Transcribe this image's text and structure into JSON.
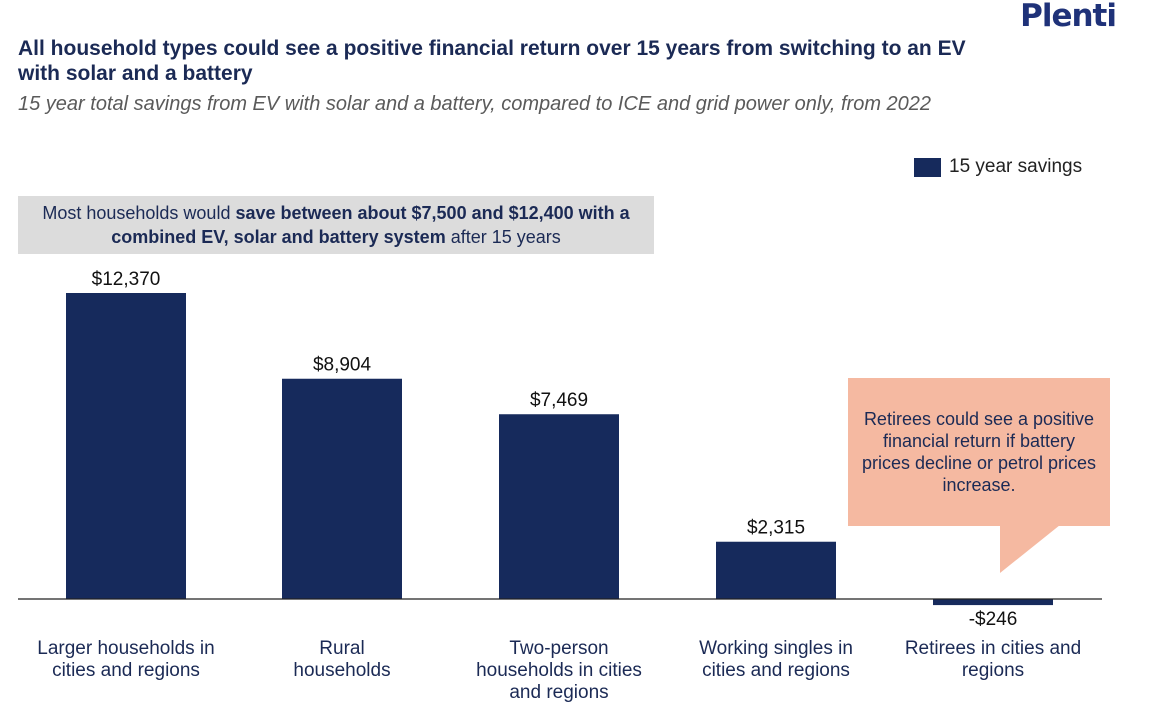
{
  "brand": "Plenti",
  "title": "All household types could see a positive financial return over 15 years from switching to an EV with solar and a battery",
  "subtitle": "15 year total savings from EV with solar and a battery, compared to ICE and grid power only, from 2022",
  "highlight": {
    "part1": "Most households would ",
    "bold": "save between about $7,500 and $12,400 with a combined EV, solar and battery system",
    "part2": " after 15 years"
  },
  "callout": "Retirees could see a positive financial return if battery prices decline or petrol prices increase.",
  "colors": {
    "bar": "#162a5c",
    "highlight_bg": "#dcdcdc",
    "callout_bg": "#f5b9a1",
    "text": "#1b2a55"
  },
  "chart_data": {
    "type": "bar",
    "categories": [
      "Larger households in cities and regions",
      "Rural households",
      "Two-person households in cities and regions",
      "Working singles in cities and regions",
      "Retirees in cities and regions"
    ],
    "series": [
      {
        "name": "15 year savings",
        "values": [
          12370,
          8904,
          7469,
          2315,
          -246
        ],
        "labels": [
          "$12,370",
          "$8,904",
          "$7,469",
          "$2,315",
          "-$246"
        ]
      }
    ],
    "legend": "top-right",
    "grid": false
  }
}
